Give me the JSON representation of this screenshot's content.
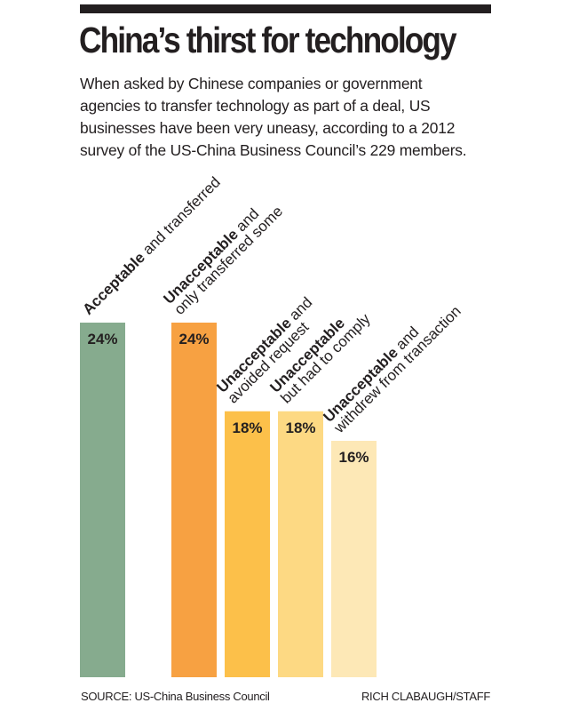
{
  "header": {
    "title": "China’s thirst for technology",
    "subtitle_lines": [
      "When asked by Chinese companies or government",
      "agencies to transfer technology as part of a deal, US",
      "businesses have been very uneasy, according to a 2012",
      "survey of the US-China Business Council’s 229 members."
    ]
  },
  "chart_data": {
    "type": "bar",
    "title": "China’s thirst for technology",
    "xlabel": "",
    "ylabel": "",
    "unit": "%",
    "ylim": [
      0,
      24
    ],
    "grid": false,
    "legend": "none",
    "categories": [
      {
        "bold": "Acceptable",
        "rest": " and transferred",
        "line2": ""
      },
      {
        "bold": "Unacceptable",
        "rest": " and",
        "line2": "only transferred some"
      },
      {
        "bold": "Unacceptable",
        "rest": " and",
        "line2": "avoided request"
      },
      {
        "bold": "Unacceptable",
        "rest": "",
        "line2": "but had to comply"
      },
      {
        "bold": "Unacceptable",
        "rest": " and",
        "line2": "withdrew from transaction"
      }
    ],
    "values": [
      24,
      24,
      18,
      18,
      16
    ],
    "value_labels": [
      "24%",
      "24%",
      "18%",
      "18%",
      "16%"
    ],
    "colors": [
      "#86ab8e",
      "#f7a142",
      "#fcc04a",
      "#fdd983",
      "#fde8b6"
    ]
  },
  "footer": {
    "source": "SOURCE: US-China Business Council",
    "credit": "RICH CLABAUGH/STAFF"
  }
}
